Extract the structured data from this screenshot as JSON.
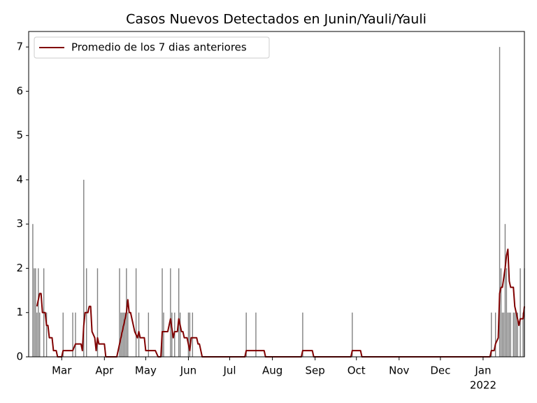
{
  "chart_data": {
    "type": "bar-line",
    "title": "Casos Nuevos Detectados en Junin/Yauli/Yauli",
    "xlim": [
      -24,
      336
    ],
    "ylim": [
      0,
      7.35
    ],
    "xticks": [
      {
        "value": 0,
        "label": "Mar"
      },
      {
        "value": 31,
        "label": "Apr"
      },
      {
        "value": 61,
        "label": "May"
      },
      {
        "value": 92,
        "label": "Jun"
      },
      {
        "value": 122,
        "label": "Jul"
      },
      {
        "value": 153,
        "label": "Aug"
      },
      {
        "value": 184,
        "label": "Sep"
      },
      {
        "value": 214,
        "label": "Oct"
      },
      {
        "value": 245,
        "label": "Nov"
      },
      {
        "value": 275,
        "label": "Dec"
      },
      {
        "value": 306,
        "label": "Jan"
      }
    ],
    "x_year_label": "2022",
    "yticks": [
      0,
      1,
      2,
      3,
      4,
      5,
      6,
      7
    ],
    "legend": "upper left",
    "series": [
      {
        "type": "bar",
        "color": "#7f7f7f",
        "x": [
          -21,
          -20,
          -19,
          -18,
          -17,
          -16,
          -13,
          -11,
          1,
          8,
          10,
          16,
          18,
          26,
          42,
          43,
          44,
          45,
          46,
          47,
          48,
          54,
          56,
          63,
          73,
          74,
          79,
          80,
          82,
          85,
          86,
          92,
          93,
          95,
          134,
          141,
          175,
          211,
          312,
          315,
          318,
          319,
          320,
          321,
          322,
          323,
          324,
          325,
          326,
          328,
          329,
          330,
          331,
          333,
          335,
          336
        ],
        "values": [
          3,
          2,
          2,
          1,
          2,
          1,
          2,
          1,
          1,
          1,
          1,
          4,
          2,
          2,
          2,
          1,
          1,
          1,
          1,
          2,
          1,
          2,
          1,
          1,
          2,
          1,
          2,
          1,
          1,
          2,
          1,
          1,
          1,
          1,
          1,
          1,
          1,
          1,
          1,
          1,
          7,
          2,
          1,
          1,
          3,
          2,
          1,
          1,
          1,
          1,
          1,
          1,
          1,
          2,
          1,
          2
        ]
      },
      {
        "type": "line",
        "name": "Promedio de los 7 dias anteriores",
        "color": "#800000",
        "x": [
          -18,
          -16,
          -15,
          -14,
          -12,
          -11,
          -10,
          -9,
          -7,
          -6,
          -4,
          -3,
          0,
          1,
          8,
          10,
          14,
          15,
          16,
          17,
          19,
          20,
          21,
          22,
          24,
          25,
          26,
          27,
          31,
          32,
          40,
          42,
          47,
          48,
          49,
          50,
          53,
          55,
          56,
          57,
          60,
          61,
          68,
          70,
          72,
          73,
          77,
          79,
          81,
          82,
          84,
          85,
          87,
          88,
          89,
          91,
          93,
          94,
          98,
          99,
          100,
          102,
          133,
          134,
          147,
          148,
          174,
          175,
          182,
          183,
          210,
          211,
          217,
          218,
          311,
          312,
          314,
          315,
          317,
          318,
          319,
          320,
          322,
          323,
          324,
          325,
          326,
          328,
          329,
          331,
          332,
          333,
          335,
          336
        ],
        "values": [
          1.14,
          1.43,
          1.43,
          1.0,
          1.0,
          0.71,
          0.71,
          0.43,
          0.43,
          0.14,
          0.14,
          0,
          0,
          0.14,
          0.14,
          0.29,
          0.29,
          0.14,
          0.71,
          1.0,
          1.0,
          1.14,
          1.14,
          0.57,
          0.43,
          0.14,
          0.43,
          0.29,
          0.29,
          0,
          0,
          0.29,
          1.0,
          1.29,
          1.0,
          1.0,
          0.57,
          0.43,
          0.57,
          0.43,
          0.43,
          0.14,
          0.14,
          0,
          0,
          0.57,
          0.57,
          0.86,
          0.43,
          0.57,
          0.57,
          0.86,
          0.57,
          0.57,
          0.43,
          0.43,
          0.14,
          0.43,
          0.43,
          0.29,
          0.29,
          0,
          0,
          0.14,
          0.14,
          0,
          0,
          0.14,
          0.14,
          0,
          0,
          0.14,
          0.14,
          0,
          0,
          0.14,
          0.14,
          0.29,
          0.43,
          1.43,
          1.57,
          1.57,
          2.0,
          2.29,
          2.43,
          1.71,
          1.57,
          1.57,
          1.14,
          0.86,
          0.71,
          0.86,
          0.86,
          1.14
        ]
      }
    ]
  }
}
